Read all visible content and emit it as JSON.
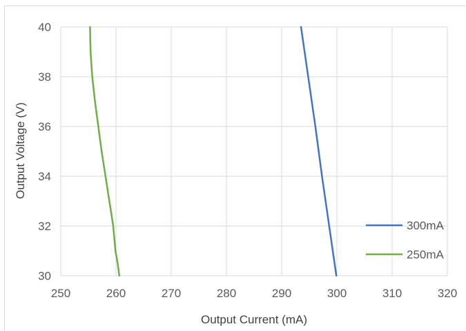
{
  "chart_data": {
    "type": "line",
    "xlabel": "Output Current (mA)",
    "ylabel": "Output Voltage (V)",
    "xlim": [
      250,
      320
    ],
    "ylim": [
      30,
      40
    ],
    "xticks": [
      250,
      260,
      270,
      280,
      290,
      300,
      310,
      320
    ],
    "yticks": [
      30,
      32,
      34,
      36,
      38,
      40
    ],
    "grid": true,
    "legend_position": "bottom-right",
    "series": [
      {
        "name": "300mA",
        "color": "#4472c4",
        "points": [
          [
            293.5,
            40
          ],
          [
            294.8,
            38
          ],
          [
            296.1,
            36
          ],
          [
            297.3,
            34
          ],
          [
            298.6,
            32
          ],
          [
            299.9,
            30
          ]
        ]
      },
      {
        "name": "250mA",
        "color": "#70ad47",
        "points": [
          [
            255.3,
            40
          ],
          [
            255.4,
            39
          ],
          [
            255.7,
            38
          ],
          [
            256.2,
            37
          ],
          [
            256.8,
            36
          ],
          [
            257.4,
            35
          ],
          [
            258.1,
            34
          ],
          [
            258.8,
            33
          ],
          [
            259.5,
            32
          ],
          [
            259.9,
            31
          ],
          [
            260.3,
            30.5
          ],
          [
            260.6,
            30
          ]
        ]
      }
    ]
  }
}
